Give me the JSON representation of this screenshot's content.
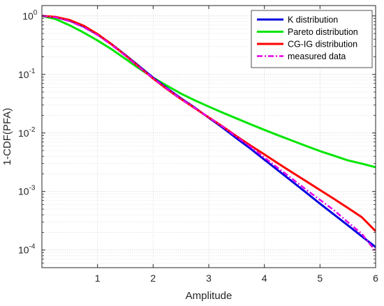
{
  "chart_data": {
    "type": "line",
    "xlabel": "Amplitude",
    "ylabel": "1-CDF(PFA)",
    "xlim": [
      0,
      6
    ],
    "ylim": [
      5e-05,
      1.5
    ],
    "yscale": "log",
    "grid": true,
    "legend_position": "top-right",
    "x_ticks": [
      {
        "value": 1,
        "label": "1"
      },
      {
        "value": 2,
        "label": "2"
      },
      {
        "value": 3,
        "label": "3"
      },
      {
        "value": 4,
        "label": "4"
      },
      {
        "value": 5,
        "label": "5"
      },
      {
        "value": 6,
        "label": "6"
      }
    ],
    "y_ticks": [
      {
        "value": 1,
        "base": "10",
        "exp": "0"
      },
      {
        "value": 0.1,
        "base": "10",
        "exp": "-1"
      },
      {
        "value": 0.01,
        "base": "10",
        "exp": "-2"
      },
      {
        "value": 0.001,
        "base": "10",
        "exp": "-3"
      },
      {
        "value": 0.0001,
        "base": "10",
        "exp": "-4"
      }
    ],
    "series": [
      {
        "name": "K distribution",
        "color": "#0000e0",
        "width": 3,
        "style": "solid",
        "x": [
          0,
          0.25,
          0.5,
          0.75,
          1.0,
          1.25,
          1.5,
          1.75,
          2.0,
          2.25,
          2.5,
          2.75,
          3.0,
          3.25,
          3.5,
          3.75,
          4.0,
          4.25,
          4.5,
          4.75,
          5.0,
          5.25,
          5.5,
          5.75,
          6.0
        ],
        "y": [
          1.0,
          0.95,
          0.83,
          0.66,
          0.48,
          0.33,
          0.215,
          0.138,
          0.088,
          0.058,
          0.039,
          0.027,
          0.0182,
          0.0123,
          0.0081,
          0.0054,
          0.0035,
          0.00228,
          0.00148,
          0.00096,
          0.00062,
          0.000405,
          0.000265,
          0.000172,
          0.000112
        ]
      },
      {
        "name": "Pareto distribution",
        "color": "#00e600",
        "width": 3,
        "style": "solid",
        "x": [
          0,
          0.25,
          0.5,
          0.75,
          1.0,
          1.25,
          1.5,
          1.75,
          2.0,
          2.25,
          2.5,
          2.75,
          3.0,
          3.25,
          3.5,
          3.75,
          4.0,
          4.25,
          4.5,
          4.75,
          5.0,
          5.25,
          5.5,
          5.75,
          6.0
        ],
        "y": [
          1.0,
          0.88,
          0.69,
          0.52,
          0.38,
          0.27,
          0.185,
          0.126,
          0.088,
          0.064,
          0.047,
          0.036,
          0.0282,
          0.0222,
          0.0177,
          0.0141,
          0.0113,
          0.0091,
          0.0074,
          0.006,
          0.0049,
          0.0041,
          0.0034,
          0.003,
          0.0026
        ]
      },
      {
        "name": "CG-IG distribution",
        "color": "#ff0000",
        "width": 3,
        "style": "solid",
        "x": [
          0,
          0.25,
          0.5,
          0.75,
          1.0,
          1.25,
          1.5,
          1.75,
          2.0,
          2.25,
          2.5,
          2.75,
          3.0,
          3.25,
          3.5,
          3.75,
          4.0,
          4.25,
          4.5,
          4.75,
          5.0,
          5.25,
          5.5,
          5.75,
          6.0
        ],
        "y": [
          1.0,
          0.96,
          0.85,
          0.68,
          0.49,
          0.33,
          0.212,
          0.134,
          0.085,
          0.056,
          0.038,
          0.0265,
          0.0185,
          0.0129,
          0.0088,
          0.0061,
          0.0043,
          0.003,
          0.00212,
          0.0015,
          0.00106,
          0.00075,
          0.000525,
          0.000365,
          0.00021
        ]
      },
      {
        "name": "measured data",
        "color": "#e600e6",
        "width": 2.5,
        "style": "dashdot",
        "x": [
          0,
          0.25,
          0.5,
          0.75,
          1.0,
          1.25,
          1.5,
          1.75,
          2.0,
          2.25,
          2.5,
          2.75,
          3.0,
          3.25,
          3.5,
          3.75,
          4.0,
          4.25,
          4.5,
          4.75,
          5.0,
          5.25,
          5.5,
          5.75,
          6.0
        ],
        "y": [
          1.0,
          0.94,
          0.81,
          0.64,
          0.47,
          0.32,
          0.208,
          0.132,
          0.086,
          0.057,
          0.038,
          0.0266,
          0.0186,
          0.0128,
          0.0086,
          0.0058,
          0.0038,
          0.0025,
          0.00165,
          0.00108,
          0.00072,
          0.00048,
          0.0003,
          0.00019,
          9.5e-05
        ]
      }
    ]
  }
}
